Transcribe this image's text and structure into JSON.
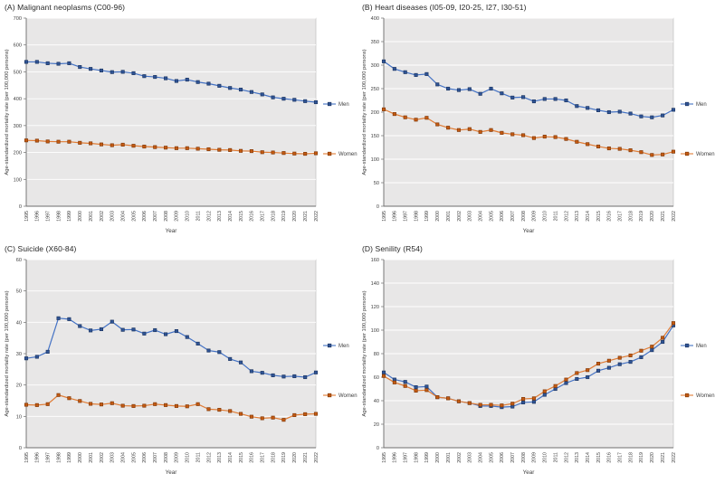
{
  "colors": {
    "men_line": "#4472C4",
    "men_marker_fill": "#2F5496",
    "men_marker_stroke": "#1F3864",
    "women_line": "#E07C35",
    "women_marker_fill": "#C55A11",
    "women_marker_stroke": "#843C0C",
    "plot_bg": "#E8E7E7",
    "plot_border": "#BFBFBF",
    "gridline": "#FFFFFF",
    "axis": "#6E6E6E",
    "text": "#404040"
  },
  "legend": {
    "men_label": "Men",
    "women_label": "Women"
  },
  "chart_data": [
    {
      "id": "A",
      "type": "line",
      "title": "(A) Malignant neoplasms  (C00-96)",
      "xlabel": "Year",
      "ylabel": "Age-standardized mortality rate (per 100,000 persons)",
      "ylim": [
        0,
        700
      ],
      "ystep": 100,
      "grid": true,
      "legend_position": "right",
      "categories": [
        1995,
        1996,
        1997,
        1998,
        1999,
        2000,
        2001,
        2002,
        2003,
        2004,
        2005,
        2006,
        2007,
        2008,
        2009,
        2010,
        2011,
        2012,
        2013,
        2014,
        2015,
        2016,
        2017,
        2018,
        2019,
        2020,
        2021,
        2022
      ],
      "series": [
        {
          "name": "Men",
          "values": [
            537,
            537,
            532,
            530,
            532,
            518,
            511,
            505,
            499,
            500,
            495,
            484,
            481,
            476,
            466,
            471,
            462,
            456,
            448,
            440,
            434,
            425,
            416,
            405,
            400,
            396,
            391,
            387
          ]
        },
        {
          "name": "Women",
          "values": [
            245,
            244,
            241,
            240,
            240,
            236,
            234,
            230,
            227,
            229,
            225,
            222,
            220,
            218,
            216,
            216,
            214,
            212,
            210,
            209,
            206,
            205,
            201,
            200,
            198,
            196,
            195,
            197
          ]
        }
      ]
    },
    {
      "id": "B",
      "type": "line",
      "title": "(B) Heart diseases  (I05-09, I20-25, I27, I30-51)",
      "xlabel": "Year",
      "ylabel": "Age-standardized mortality rate (per 100,000 persons)",
      "ylim": [
        0,
        400
      ],
      "ystep": 50,
      "grid": true,
      "legend_position": "right",
      "categories": [
        1995,
        1996,
        1997,
        1998,
        1999,
        2000,
        2001,
        2002,
        2003,
        2004,
        2005,
        2006,
        2007,
        2008,
        2009,
        2010,
        2011,
        2012,
        2013,
        2014,
        2015,
        2016,
        2017,
        2018,
        2019,
        2020,
        2021,
        2022
      ],
      "series": [
        {
          "name": "Men",
          "values": [
            308,
            292,
            285,
            279,
            281,
            259,
            250,
            247,
            249,
            239,
            250,
            240,
            231,
            232,
            223,
            228,
            228,
            225,
            213,
            209,
            204,
            200,
            201,
            197,
            191,
            189,
            193,
            205
          ]
        },
        {
          "name": "Women",
          "values": [
            206,
            196,
            189,
            184,
            188,
            174,
            167,
            162,
            164,
            158,
            162,
            156,
            153,
            151,
            145,
            148,
            147,
            143,
            137,
            132,
            127,
            123,
            122,
            119,
            115,
            109,
            110,
            116
          ]
        }
      ]
    },
    {
      "id": "C",
      "type": "line",
      "title": "(C) Suicide (X60-84)",
      "xlabel": "Year",
      "ylabel": "Age-standardized mortality rate (per 100,000 persons)",
      "ylim": [
        0,
        60
      ],
      "ystep": 10,
      "grid": true,
      "legend_position": "right",
      "categories": [
        1995,
        1996,
        1997,
        1998,
        1999,
        2000,
        2001,
        2002,
        2003,
        2004,
        2005,
        2006,
        2007,
        2008,
        2009,
        2010,
        2011,
        2012,
        2013,
        2014,
        2015,
        2016,
        2017,
        2018,
        2019,
        2020,
        2021,
        2022
      ],
      "series": [
        {
          "name": "Men",
          "values": [
            28.5,
            29.0,
            30.6,
            41.3,
            41.0,
            38.8,
            37.4,
            37.8,
            40.2,
            37.6,
            37.7,
            36.4,
            37.5,
            36.2,
            37.2,
            35.3,
            33.2,
            31.0,
            30.5,
            28.3,
            27.2,
            24.4,
            23.9,
            23.1,
            22.7,
            22.8,
            22.5,
            24.0
          ]
        },
        {
          "name": "Women",
          "values": [
            13.7,
            13.6,
            13.9,
            16.8,
            15.8,
            14.9,
            14.0,
            13.8,
            14.2,
            13.4,
            13.3,
            13.4,
            13.9,
            13.6,
            13.3,
            13.2,
            13.9,
            12.3,
            12.1,
            11.7,
            10.8,
            9.9,
            9.4,
            9.6,
            8.9,
            10.4,
            10.7,
            10.8
          ]
        }
      ]
    },
    {
      "id": "D",
      "type": "line",
      "title": "(D) Senility (R54)",
      "xlabel": "Year",
      "ylabel": "Age-standardized mortality rate (per 100,000 persons)",
      "ylim": [
        0,
        160
      ],
      "ystep": 20,
      "grid": true,
      "legend_position": "right",
      "categories": [
        1995,
        1996,
        1997,
        1998,
        1999,
        2000,
        2001,
        2002,
        2003,
        2004,
        2005,
        2006,
        2007,
        2008,
        2009,
        2010,
        2011,
        2012,
        2013,
        2014,
        2015,
        2016,
        2017,
        2018,
        2019,
        2020,
        2021,
        2022
      ],
      "series": [
        {
          "name": "Men",
          "values": [
            64,
            58,
            56,
            51.5,
            52,
            43,
            42,
            39.5,
            38,
            35.5,
            35.5,
            34.5,
            35,
            38.5,
            39,
            45,
            50,
            55,
            58.5,
            60,
            65.5,
            68,
            71,
            73,
            77,
            83,
            90,
            104
          ]
        },
        {
          "name": "Women",
          "values": [
            61,
            55.5,
            52.5,
            48.5,
            49,
            43,
            42,
            39.5,
            38,
            36.5,
            36.5,
            36,
            37.5,
            41.5,
            42,
            48,
            52.5,
            58,
            63.5,
            66,
            71.5,
            74,
            76.5,
            78.5,
            82.5,
            86,
            93.5,
            106
          ]
        }
      ]
    }
  ]
}
